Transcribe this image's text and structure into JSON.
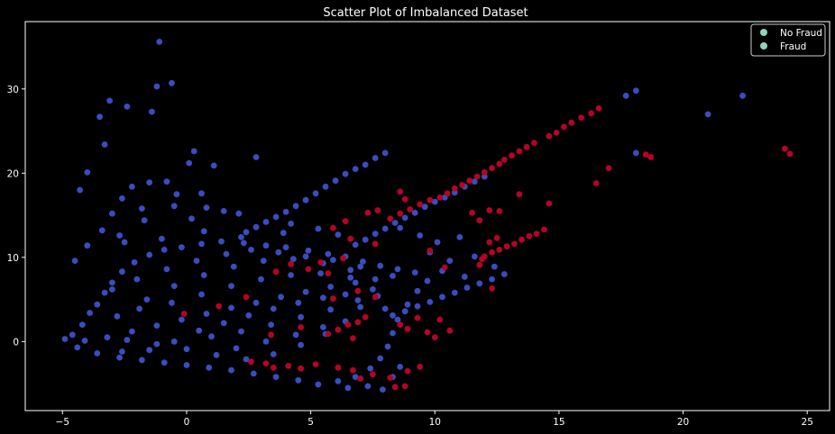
{
  "chart_data": {
    "type": "scatter",
    "title": "Scatter Plot of Imbalanced Dataset",
    "xlabel": "",
    "ylabel": "",
    "xlim": [
      -6.5,
      25.9
    ],
    "ylim": [
      -8.2,
      38.0
    ],
    "x_ticks": [
      -5,
      0,
      5,
      10,
      15,
      20,
      25
    ],
    "y_ticks": [
      0,
      10,
      20,
      30
    ],
    "grid": false,
    "background": "#000000",
    "legend_position": "top-right",
    "legend": [
      {
        "label": "No Fraud",
        "marker_color": "#8fd3c0"
      },
      {
        "label": "Fraud",
        "marker_color": "#8fd3c0"
      }
    ],
    "series": [
      {
        "name": "No Fraud",
        "color": "#3b4cc0",
        "points": [
          [
            -1.1,
            35.6
          ],
          [
            -0.6,
            30.7
          ],
          [
            -1.2,
            30.3
          ],
          [
            -3.1,
            28.6
          ],
          [
            -3.5,
            26.7
          ],
          [
            -2.4,
            27.9
          ],
          [
            -1.4,
            27.3
          ],
          [
            -3.3,
            23.4
          ],
          [
            -4.0,
            20.1
          ],
          [
            -4.3,
            18.0
          ],
          [
            -0.8,
            19.0
          ],
          [
            -0.4,
            17.5
          ],
          [
            0.3,
            22.6
          ],
          [
            0.1,
            21.2
          ],
          [
            1.1,
            20.9
          ],
          [
            2.8,
            21.9
          ],
          [
            -2.2,
            18.4
          ],
          [
            -1.5,
            18.9
          ],
          [
            0.6,
            17.6
          ],
          [
            -2.6,
            17.0
          ],
          [
            17.7,
            29.2
          ],
          [
            18.1,
            29.8
          ],
          [
            21.0,
            27.0
          ],
          [
            22.4,
            29.2
          ],
          [
            18.1,
            22.4
          ],
          [
            8.0,
            22.4
          ],
          [
            7.6,
            21.8
          ],
          [
            7.2,
            21.0
          ],
          [
            6.8,
            20.5
          ],
          [
            6.4,
            19.9
          ],
          [
            6.0,
            19.1
          ],
          [
            5.6,
            18.4
          ],
          [
            5.2,
            17.6
          ],
          [
            4.8,
            16.8
          ],
          [
            4.4,
            16.1
          ],
          [
            4.0,
            15.4
          ],
          [
            3.6,
            14.8
          ],
          [
            3.2,
            14.2
          ],
          [
            2.8,
            13.6
          ],
          [
            2.4,
            13.0
          ],
          [
            12.0,
            19.6
          ],
          [
            11.6,
            19.0
          ],
          [
            11.2,
            18.4
          ],
          [
            10.8,
            17.7
          ],
          [
            10.4,
            17.1
          ],
          [
            10.0,
            16.6
          ],
          [
            9.6,
            16.0
          ],
          [
            9.2,
            15.3
          ],
          [
            8.8,
            14.7
          ],
          [
            8.4,
            14.1
          ],
          [
            8.0,
            13.4
          ],
          [
            7.6,
            12.8
          ],
          [
            7.2,
            12.1
          ],
          [
            6.8,
            11.5
          ],
          [
            12.8,
            8.0
          ],
          [
            12.3,
            7.4
          ],
          [
            11.8,
            6.9
          ],
          [
            11.3,
            6.4
          ],
          [
            10.8,
            5.8
          ],
          [
            10.3,
            5.3
          ],
          [
            9.8,
            4.7
          ],
          [
            9.3,
            4.2
          ],
          [
            8.8,
            3.6
          ],
          [
            8.3,
            3.1
          ],
          [
            6.5,
            -5.5
          ],
          [
            7.3,
            -5.3
          ],
          [
            7.9,
            -5.7
          ],
          [
            8.3,
            -4.2
          ],
          [
            8.6,
            -3.0
          ],
          [
            7.0,
            -4.4
          ],
          [
            1.5,
            15.5
          ],
          [
            0.8,
            15.9
          ],
          [
            -0.5,
            16.1
          ],
          [
            -1.8,
            15.8
          ],
          [
            -3.0,
            15.2
          ],
          [
            -3.4,
            13.2
          ],
          [
            -2.7,
            12.6
          ],
          [
            -1.7,
            14.4
          ],
          [
            0.2,
            14.6
          ],
          [
            2.1,
            15.2
          ],
          [
            4.2,
            14.0
          ],
          [
            5.3,
            13.4
          ],
          [
            6.1,
            12.7
          ],
          [
            3.9,
            12.9
          ],
          [
            2.2,
            12.4
          ],
          [
            0.7,
            13.1
          ],
          [
            -1.0,
            12.2
          ],
          [
            -2.5,
            11.8
          ],
          [
            -4.0,
            11.4
          ],
          [
            -4.5,
            9.6
          ],
          [
            8.6,
            13.5
          ],
          [
            9.4,
            12.6
          ],
          [
            10.1,
            11.8
          ],
          [
            11.0,
            12.4
          ],
          [
            11.6,
            10.1
          ],
          [
            10.6,
            9.6
          ],
          [
            9.8,
            10.6
          ],
          [
            12.4,
            8.9
          ],
          [
            11.2,
            7.7
          ],
          [
            10.3,
            8.4
          ],
          [
            -4.9,
            0.3
          ],
          [
            -4.6,
            0.8
          ],
          [
            -4.2,
            2.0
          ],
          [
            -3.9,
            3.4
          ],
          [
            -3.6,
            4.4
          ],
          [
            -3.3,
            5.8
          ],
          [
            -3.0,
            7.0
          ],
          [
            -2.6,
            8.3
          ],
          [
            -2.1,
            9.4
          ],
          [
            -1.5,
            10.3
          ],
          [
            -0.9,
            10.9
          ],
          [
            -0.2,
            11.2
          ],
          [
            0.6,
            11.6
          ],
          [
            1.4,
            11.9
          ],
          [
            2.3,
            11.7
          ],
          [
            3.2,
            11.4
          ],
          [
            4.0,
            11.2
          ],
          [
            4.9,
            10.8
          ],
          [
            5.7,
            10.4
          ],
          [
            6.4,
            10.1
          ],
          [
            7.1,
            9.5
          ],
          [
            7.8,
            9.0
          ],
          [
            8.5,
            8.6
          ],
          [
            9.2,
            8.2
          ],
          [
            9.7,
            7.2
          ],
          [
            9.3,
            6.0
          ],
          [
            8.9,
            4.4
          ],
          [
            8.5,
            2.6
          ],
          [
            8.3,
            1.0
          ],
          [
            8.1,
            -0.6
          ],
          [
            7.8,
            -2.0
          ],
          [
            7.4,
            -3.2
          ],
          [
            6.8,
            -4.2
          ],
          [
            6.1,
            -4.7
          ],
          [
            5.3,
            -5.1
          ],
          [
            4.5,
            -4.6
          ],
          [
            3.6,
            -4.2
          ],
          [
            2.7,
            -3.8
          ],
          [
            1.8,
            -3.4
          ],
          [
            0.9,
            -3.1
          ],
          [
            0.0,
            -2.8
          ],
          [
            -0.9,
            -2.5
          ],
          [
            -1.8,
            -2.2
          ],
          [
            -2.7,
            -1.9
          ],
          [
            -3.6,
            -1.4
          ],
          [
            -4.4,
            -0.7
          ],
          [
            -4.1,
            0.1
          ],
          [
            -3.2,
            0.5
          ],
          [
            -2.2,
            1.2
          ],
          [
            -1.2,
            1.9
          ],
          [
            -0.2,
            2.6
          ],
          [
            0.8,
            3.3
          ],
          [
            1.8,
            4.0
          ],
          [
            2.8,
            4.6
          ],
          [
            3.8,
            5.3
          ],
          [
            4.8,
            5.9
          ],
          [
            5.8,
            6.5
          ],
          [
            6.8,
            7.0
          ],
          [
            7.6,
            7.4
          ],
          [
            8.3,
            7.8
          ],
          [
            -2.8,
            3.0
          ],
          [
            -1.6,
            5.0
          ],
          [
            -0.5,
            6.6
          ],
          [
            0.7,
            7.9
          ],
          [
            1.9,
            8.9
          ],
          [
            3.1,
            9.6
          ],
          [
            4.3,
            9.8
          ],
          [
            5.5,
            9.3
          ],
          [
            6.6,
            8.5
          ],
          [
            7.5,
            6.2
          ],
          [
            7.0,
            4.1
          ],
          [
            6.4,
            2.4
          ],
          [
            5.6,
            0.9
          ],
          [
            4.6,
            -0.4
          ],
          [
            3.5,
            -1.5
          ],
          [
            2.4,
            -2.1
          ],
          [
            1.2,
            -1.6
          ],
          [
            0.0,
            -0.9
          ],
          [
            -1.2,
            -0.3
          ],
          [
            -2.4,
            0.2
          ],
          [
            -3.0,
            6.2
          ],
          [
            -2.0,
            7.4
          ],
          [
            -0.8,
            8.6
          ],
          [
            0.4,
            9.6
          ],
          [
            1.6,
            10.4
          ],
          [
            2.6,
            10.9
          ],
          [
            3.7,
            10.6
          ],
          [
            4.8,
            10.1
          ],
          [
            5.9,
            9.7
          ],
          [
            7.0,
            8.9
          ],
          [
            -1.9,
            3.9
          ],
          [
            -0.6,
            4.6
          ],
          [
            0.6,
            5.6
          ],
          [
            1.8,
            6.6
          ],
          [
            3.0,
            7.4
          ],
          [
            4.2,
            7.9
          ],
          [
            5.4,
            8.1
          ],
          [
            6.6,
            7.6
          ],
          [
            7.7,
            5.4
          ],
          [
            8.0,
            3.9
          ],
          [
            1.0,
            0.6
          ],
          [
            2.2,
            1.2
          ],
          [
            3.4,
            2.0
          ],
          [
            4.6,
            2.9
          ],
          [
            5.8,
            3.8
          ],
          [
            6.9,
            4.9
          ],
          [
            2.0,
            -0.8
          ],
          [
            3.2,
            0.0
          ],
          [
            4.4,
            0.8
          ],
          [
            5.5,
            1.7
          ],
          [
            -0.5,
            0.0
          ],
          [
            0.5,
            1.3
          ],
          [
            1.5,
            2.2
          ],
          [
            2.5,
            3.1
          ],
          [
            3.5,
            3.9
          ],
          [
            4.5,
            4.6
          ],
          [
            5.5,
            5.2
          ],
          [
            6.4,
            5.6
          ],
          [
            -1.5,
            -1.0
          ],
          [
            -2.6,
            -1.2
          ]
        ]
      },
      {
        "name": "Fraud",
        "color": "#b40426",
        "points": [
          [
            16.6,
            27.7
          ],
          [
            16.3,
            27.1
          ],
          [
            15.9,
            26.6
          ],
          [
            15.5,
            26.0
          ],
          [
            15.2,
            25.5
          ],
          [
            14.9,
            24.8
          ],
          [
            14.6,
            24.4
          ],
          [
            14.0,
            23.6
          ],
          [
            13.7,
            23.1
          ],
          [
            13.4,
            22.6
          ],
          [
            13.1,
            22.1
          ],
          [
            12.8,
            21.6
          ],
          [
            12.6,
            21.1
          ],
          [
            12.3,
            20.6
          ],
          [
            12.0,
            20.1
          ],
          [
            11.7,
            19.6
          ],
          [
            11.4,
            19.1
          ],
          [
            11.1,
            18.6
          ],
          [
            10.8,
            18.2
          ],
          [
            10.5,
            17.6
          ],
          [
            10.2,
            17.1
          ],
          [
            9.8,
            16.8
          ],
          [
            9.4,
            16.3
          ],
          [
            9.0,
            15.7
          ],
          [
            8.6,
            15.2
          ],
          [
            8.2,
            14.6
          ],
          [
            18.5,
            22.2
          ],
          [
            18.7,
            21.9
          ],
          [
            17.0,
            20.6
          ],
          [
            16.5,
            18.8
          ],
          [
            24.1,
            22.9
          ],
          [
            24.3,
            22.3
          ],
          [
            14.6,
            16.4
          ],
          [
            13.4,
            17.5
          ],
          [
            12.6,
            15.5
          ],
          [
            12.2,
            15.6
          ],
          [
            11.5,
            15.3
          ],
          [
            11.8,
            14.4
          ],
          [
            14.4,
            13.3
          ],
          [
            14.1,
            12.8
          ],
          [
            13.8,
            12.5
          ],
          [
            13.5,
            12.1
          ],
          [
            13.2,
            11.6
          ],
          [
            12.9,
            11.3
          ],
          [
            12.6,
            10.9
          ],
          [
            12.3,
            10.6
          ],
          [
            12.0,
            10.1
          ],
          [
            11.9,
            9.8
          ],
          [
            12.5,
            12.3
          ],
          [
            12.2,
            11.8
          ],
          [
            11.8,
            9.1
          ],
          [
            12.3,
            6.3
          ],
          [
            10.4,
            8.8
          ],
          [
            9.8,
            10.8
          ],
          [
            8.6,
            17.8
          ],
          [
            8.8,
            16.9
          ],
          [
            7.7,
            15.6
          ],
          [
            7.3,
            15.3
          ],
          [
            6.4,
            14.3
          ],
          [
            5.9,
            13.5
          ],
          [
            6.6,
            12.2
          ],
          [
            7.6,
            11.6
          ],
          [
            6.3,
            9.9
          ],
          [
            5.4,
            9.4
          ],
          [
            4.9,
            8.6
          ],
          [
            4.2,
            9.2
          ],
          [
            3.6,
            8.3
          ],
          [
            5.7,
            8.1
          ],
          [
            7.2,
            2.9
          ],
          [
            6.9,
            2.3
          ],
          [
            6.5,
            2.0
          ],
          [
            6.1,
            1.4
          ],
          [
            5.7,
            0.9
          ],
          [
            6.7,
            0.4
          ],
          [
            8.6,
            2.0
          ],
          [
            8.9,
            1.5
          ],
          [
            9.3,
            2.8
          ],
          [
            10.2,
            2.6
          ],
          [
            10.6,
            1.3
          ],
          [
            9.7,
            1.1
          ],
          [
            10.0,
            0.5
          ],
          [
            5.2,
            -2.7
          ],
          [
            4.6,
            -3.2
          ],
          [
            4.1,
            -2.9
          ],
          [
            3.5,
            -3.1
          ],
          [
            3.2,
            -2.6
          ],
          [
            2.6,
            -2.4
          ],
          [
            6.1,
            -3.1
          ],
          [
            6.7,
            -3.4
          ],
          [
            7.0,
            -4.4
          ],
          [
            7.5,
            -3.9
          ],
          [
            8.2,
            -4.3
          ],
          [
            8.9,
            -3.5
          ],
          [
            9.4,
            -3.0
          ],
          [
            8.8,
            -5.3
          ],
          [
            8.4,
            -5.4
          ],
          [
            -0.1,
            3.3
          ],
          [
            1.3,
            4.2
          ],
          [
            2.4,
            5.3
          ],
          [
            4.6,
            1.7
          ],
          [
            3.4,
            0.8
          ],
          [
            5.9,
            5.1
          ],
          [
            6.9,
            6.0
          ],
          [
            7.6,
            5.3
          ]
        ]
      }
    ]
  }
}
